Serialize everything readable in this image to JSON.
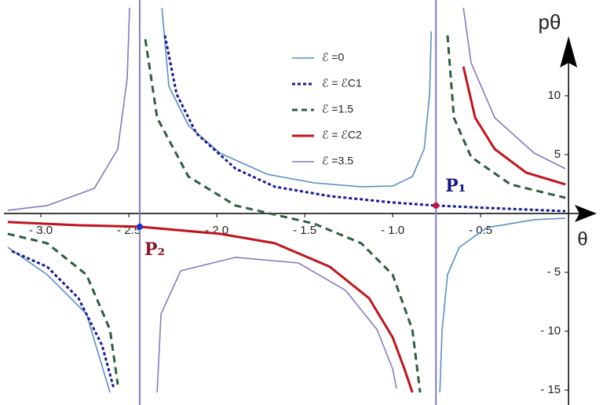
{
  "chart_data": {
    "type": "line",
    "x_label": "θ",
    "y_label": "pθ",
    "xlim": [
      -3.21,
      0.16
    ],
    "ylim": [
      -15.2,
      18.13
    ],
    "xticks": [
      {
        "value": -3.0,
        "label": "- 3.0"
      },
      {
        "value": -2.5,
        "label": "- 2.5"
      },
      {
        "value": -2.0,
        "label": "- 2.0"
      },
      {
        "value": -1.5,
        "label": "- 1.5"
      },
      {
        "value": -1.0,
        "label": "- 1.0"
      },
      {
        "value": -0.5,
        "label": "- 0.5"
      }
    ],
    "yticks": [
      10,
      5,
      {
        "value": -5,
        "label": "- 5"
      },
      {
        "value": -10,
        "label": "- 10"
      },
      {
        "value": -15,
        "label": "- 15"
      }
    ],
    "legend": "upper center",
    "series": [
      {
        "name": "ℰ =0",
        "color": "#5b8ec4",
        "dash": false,
        "x": [
          -2.312,
          -2.272,
          -2.161,
          -1.982,
          -1.714,
          -1.446,
          -1.179,
          -1.0,
          -0.888,
          -0.821,
          -0.79,
          -0.781,
          null,
          -0.732,
          -0.719,
          -0.688,
          -0.621,
          -0.464,
          -0.196,
          -0.018,
          null,
          -3.188,
          -2.964,
          -2.741,
          -2.607
        ],
        "values": [
          17.47,
          10.8,
          7.47,
          5.13,
          3.33,
          2.6,
          2.27,
          2.33,
          3.13,
          5.47,
          10.13,
          15.47,
          null,
          -15.2,
          -9.87,
          -5.2,
          -2.87,
          -1.2,
          -0.53,
          -0.4,
          null,
          -2.87,
          -5.2,
          -8.53,
          -15.2
        ]
      },
      {
        "name": "ℰ = ℰC1",
        "color": "#1a1a99",
        "dash": true,
        "x": [
          -2.295,
          -2.228,
          -2.116,
          -1.893,
          -1.67,
          -1.357,
          -1.0,
          -0.754,
          -0.464,
          -0.018,
          null,
          -3.165,
          -2.964,
          -2.786,
          -2.652,
          -2.585
        ],
        "values": [
          15.13,
          10.13,
          6.8,
          3.8,
          2.27,
          1.47,
          0.93,
          0.67,
          0.47,
          0.2,
          null,
          -3.2,
          -4.53,
          -7.2,
          -11.2,
          -14.87
        ]
      },
      {
        "name": "ℰ =1.5",
        "color": "#2e5e3e",
        "dash": true,
        "x": [
          -2.406,
          -2.339,
          -2.161,
          -1.893,
          -1.446,
          -1.179,
          -1.0,
          -0.888,
          -0.844,
          null,
          -0.688,
          -0.652,
          -0.554,
          -0.33,
          -0.018,
          null,
          -3.188,
          -2.964,
          -2.741,
          -2.607,
          -2.563
        ],
        "values": [
          14.8,
          8.13,
          3.13,
          0.67,
          -0.87,
          -2.53,
          -5.2,
          -9.87,
          -15.2,
          null,
          15.13,
          8.13,
          4.8,
          2.47,
          1.33,
          null,
          -1.73,
          -2.53,
          -5.2,
          -9.87,
          -14.53
        ]
      },
      {
        "name": "ℰ = ℰC2",
        "color": "#c0141c",
        "dash": false,
        "x": [
          -3.188,
          -2.786,
          -2.438,
          -1.982,
          -1.67,
          -1.357,
          -1.134,
          -1.0,
          -0.933,
          -0.888,
          null,
          -0.598,
          -0.531,
          -0.42,
          -0.241,
          -0.018
        ],
        "values": [
          -0.73,
          -1.0,
          -1.13,
          -1.73,
          -2.53,
          -4.53,
          -7.2,
          -10.53,
          -13.2,
          -15.2,
          null,
          12.47,
          8.13,
          5.47,
          3.47,
          2.47
        ]
      },
      {
        "name": "ℰ =3.5",
        "color": "#8878c0",
        "dash": false,
        "x": [
          -2.496,
          -2.509,
          -2.563,
          -2.696,
          -2.964,
          -3.188,
          null,
          -2.339,
          -2.317,
          -2.205,
          -1.893,
          -1.536,
          -1.268,
          -1.089,
          -1.0,
          -0.978,
          null,
          -0.598,
          -0.554,
          -0.42,
          -0.196,
          -0.018
        ],
        "values": [
          17.47,
          11.47,
          5.47,
          2.13,
          0.67,
          0.27,
          null,
          -15.2,
          -8.53,
          -4.87,
          -3.73,
          -4.2,
          -6.53,
          -9.87,
          -13.2,
          -14.87,
          null,
          17.47,
          12.8,
          8.13,
          5.13,
          3.8
        ]
      }
    ],
    "points": [
      {
        "label": "P₁",
        "x": -0.754,
        "y": 0.67,
        "color": "#c0143c",
        "label_color": "#1a1a80"
      },
      {
        "label": "P₂",
        "x": -2.438,
        "y": -1.13,
        "color": "#1a33cc",
        "label_color": "#8b1a2a"
      }
    ]
  }
}
